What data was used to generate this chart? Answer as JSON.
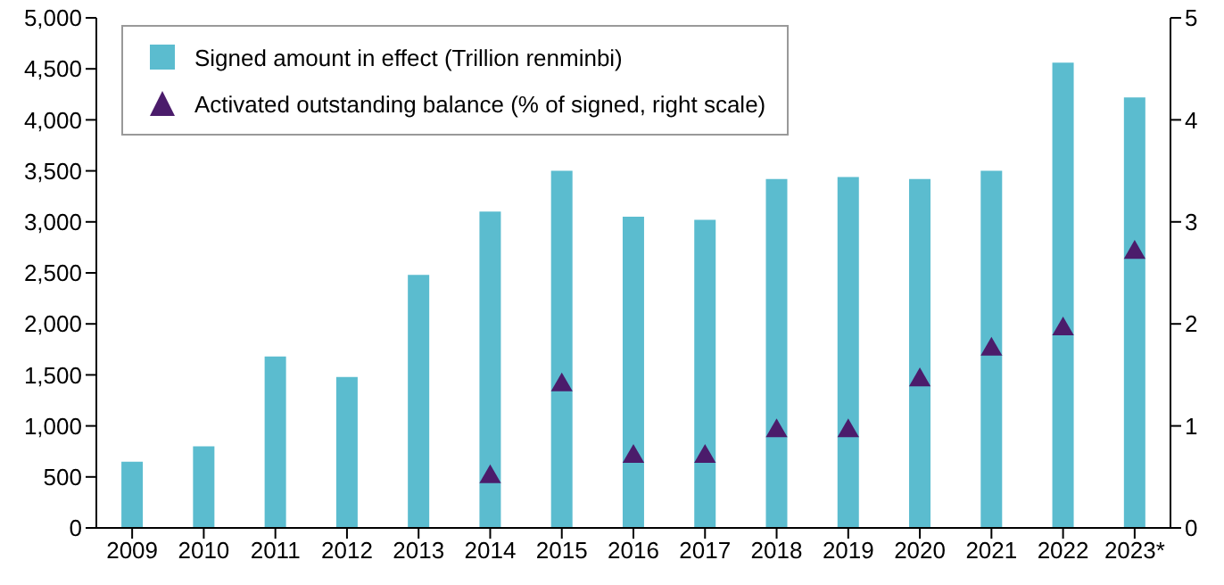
{
  "chart_data": {
    "type": "bar",
    "categories": [
      "2009",
      "2010",
      "2011",
      "2012",
      "2013",
      "2014",
      "2015",
      "2016",
      "2017",
      "2018",
      "2019",
      "2020",
      "2021",
      "2022",
      "2023*"
    ],
    "series": [
      {
        "name": "Signed amount in effect (Trillion renminbi)",
        "color": "#5bbccf",
        "values": [
          650,
          800,
          1680,
          1480,
          2480,
          3100,
          3500,
          3050,
          3020,
          3420,
          3440,
          3420,
          3500,
          4560,
          4220
        ]
      },
      {
        "name": "Activated outstanding balance (% of signed, right scale)",
        "type": "scatter",
        "axis": "y2",
        "marker": "triangle",
        "color": "#4b1c6b",
        "values": [
          null,
          null,
          null,
          null,
          null,
          0.5,
          1.4,
          0.7,
          0.7,
          0.95,
          0.95,
          1.45,
          1.75,
          1.95,
          2.7
        ]
      }
    ],
    "ylim": [
      0,
      5000
    ],
    "yticks": [
      {
        "value": 0,
        "label": "0"
      },
      {
        "value": 500,
        "label": "500"
      },
      {
        "value": 1000,
        "label": "1,000"
      },
      {
        "value": 1500,
        "label": "1,500"
      },
      {
        "value": 2000,
        "label": "2,000"
      },
      {
        "value": 2500,
        "label": "2,500"
      },
      {
        "value": 3000,
        "label": "3,000"
      },
      {
        "value": 3500,
        "label": "3,500"
      },
      {
        "value": 4000,
        "label": "4,000"
      },
      {
        "value": 4500,
        "label": "4,500"
      },
      {
        "value": 5000,
        "label": "5,000"
      }
    ],
    "y2lim": [
      0,
      5
    ],
    "y2ticks": [
      0,
      1,
      2,
      3,
      4,
      5
    ],
    "legend": "top left",
    "grid": false
  }
}
